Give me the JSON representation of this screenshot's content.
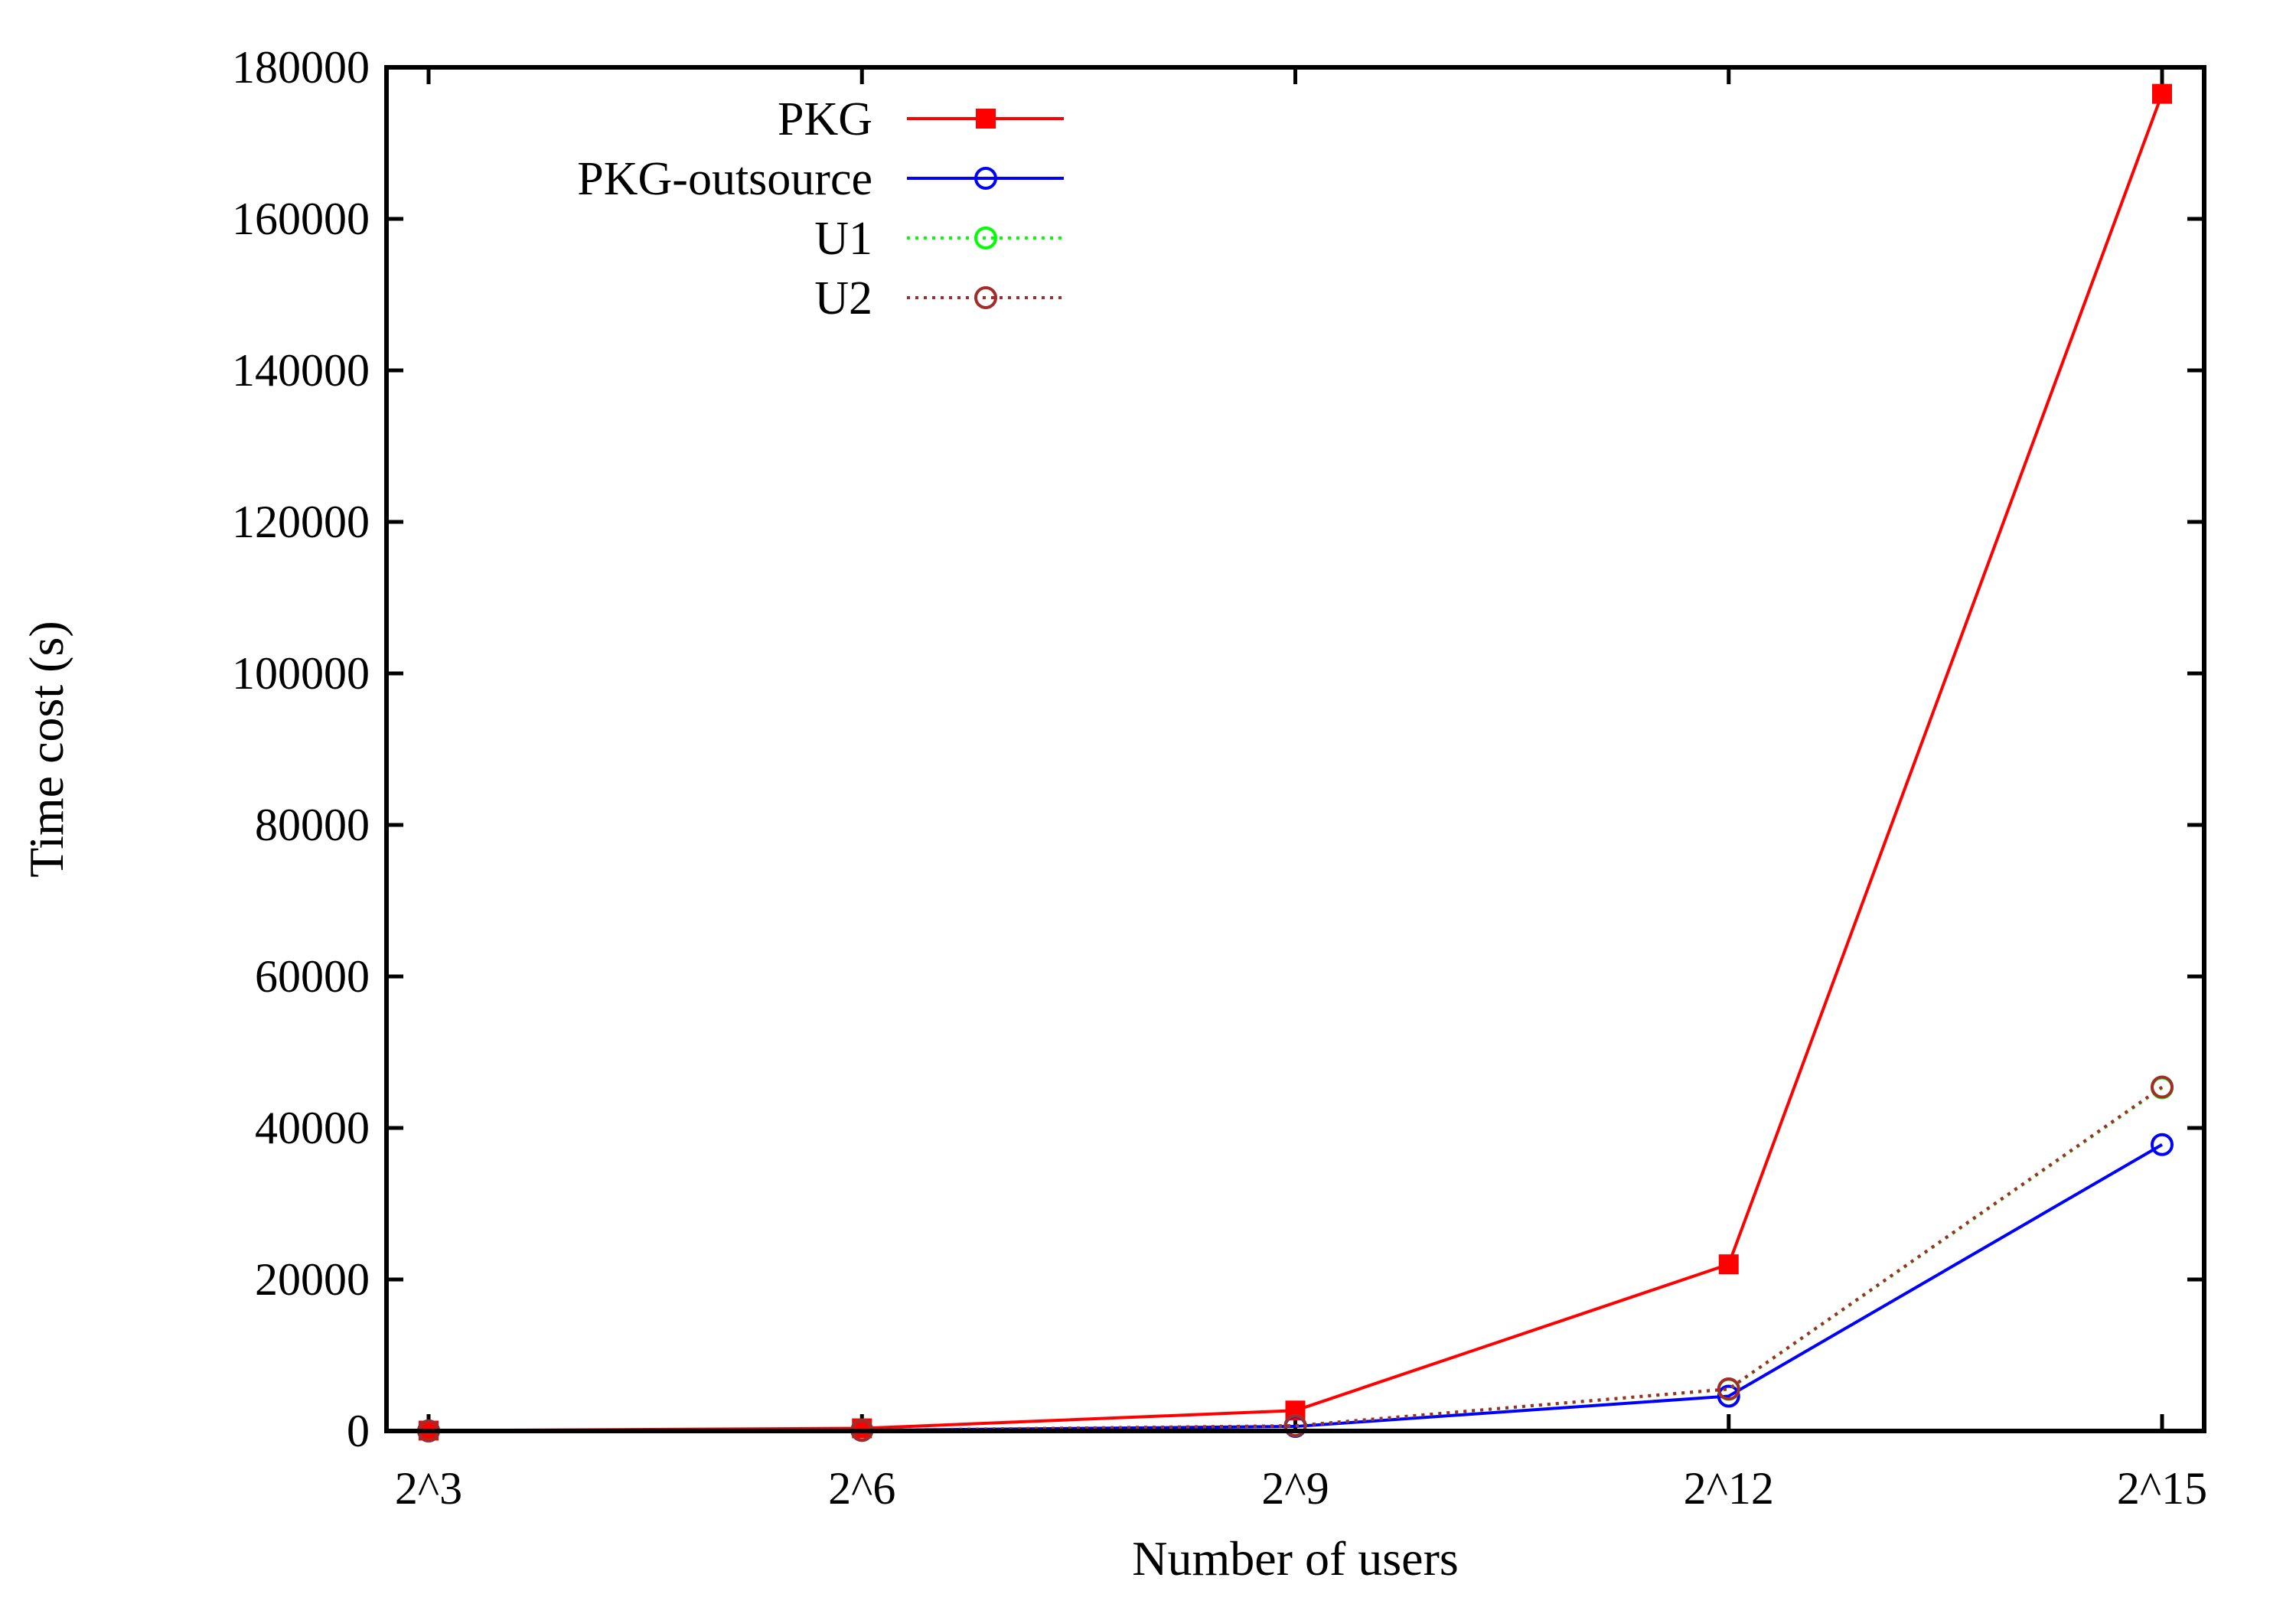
{
  "chart_data": {
    "type": "line",
    "title": "",
    "xlabel": "Number of users",
    "ylabel": "Time cost (s)",
    "categories": [
      "2^3",
      "2^6",
      "2^9",
      "2^12",
      "2^15"
    ],
    "ylim": [
      0,
      180000
    ],
    "yticks": [
      0,
      20000,
      40000,
      60000,
      80000,
      100000,
      120000,
      140000,
      160000,
      180000
    ],
    "grid": false,
    "legend_position": "top-left",
    "series": [
      {
        "name": "PKG",
        "color": "#ff0000",
        "dash": "solid",
        "marker": "filled-square",
        "values": [
          50,
          350,
          2700,
          22000,
          176500
        ]
      },
      {
        "name": "PKG-outsource",
        "color": "#0000ff",
        "dash": "solid",
        "marker": "open-circle",
        "values": [
          10,
          80,
          600,
          4600,
          37800
        ]
      },
      {
        "name": "U1",
        "color": "#00ff00",
        "dash": "dotted",
        "marker": "open-circle",
        "values": [
          12,
          90,
          690,
          5500,
          45300
        ]
      },
      {
        "name": "U2",
        "color": "#a52a2a",
        "dash": "dotted",
        "marker": "open-circle",
        "values": [
          12,
          90,
          700,
          5550,
          45400
        ]
      }
    ]
  }
}
